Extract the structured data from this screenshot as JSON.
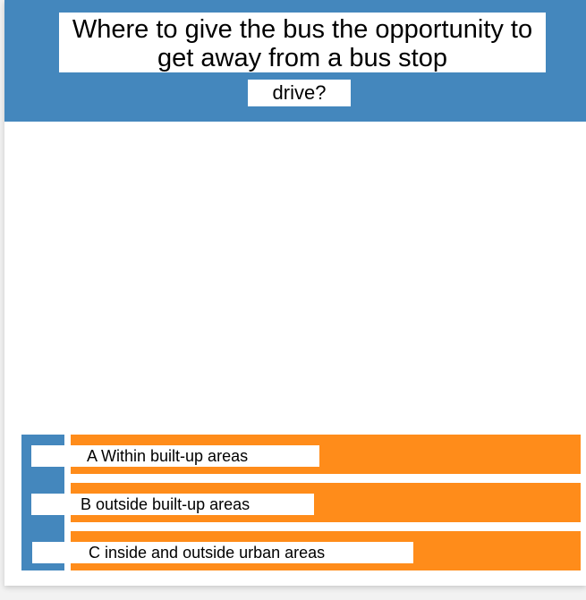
{
  "question": {
    "line1": "Where to give the bus the opportunity to get away from a bus stop",
    "line2": "drive?"
  },
  "answers": [
    {
      "label": "A Within built-up areas"
    },
    {
      "label": "B outside built-up areas"
    },
    {
      "label": "C inside and outside urban areas"
    }
  ],
  "colors": {
    "header": "#4487bd",
    "answer_bar": "#ff8c1a",
    "answer_side": "#4487bd"
  }
}
